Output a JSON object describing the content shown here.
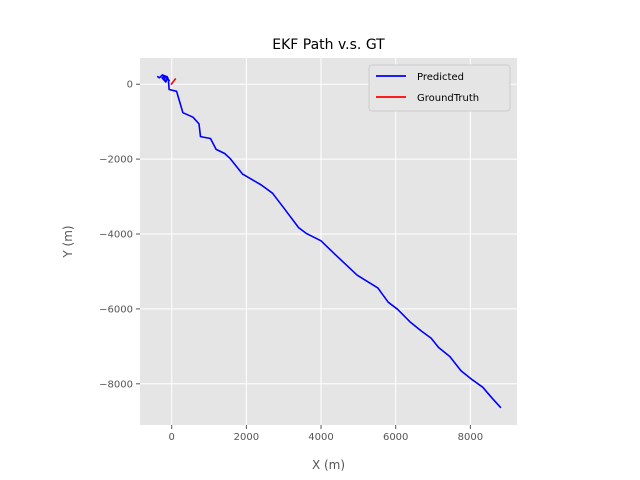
{
  "chart_data": {
    "type": "line",
    "title": "EKF Path v.s. GT",
    "xlabel": "X (m)",
    "ylabel": "Y (m)",
    "xlim": [
      -850,
      9250
    ],
    "ylim": [
      -9100,
      700
    ],
    "xticks": [
      0,
      2000,
      4000,
      6000,
      8000
    ],
    "yticks": [
      0,
      -2000,
      -4000,
      -6000,
      -8000
    ],
    "grid": true,
    "legend_position": "top-right",
    "series": [
      {
        "name": "Predicted",
        "color": "#0000ff",
        "x": [
          -390,
          -330,
          -250,
          -180,
          -260,
          -160,
          -120,
          -70,
          -230,
          -120,
          -90,
          -70,
          130,
          160,
          300,
          570,
          730,
          770,
          1040,
          1190,
          1420,
          1560,
          1900,
          2400,
          2700,
          3000,
          3400,
          3600,
          4000,
          4340,
          4700,
          4970,
          5520,
          5800,
          6050,
          6400,
          6700,
          6950,
          7150,
          7450,
          7750,
          8050,
          8330,
          8600,
          8820
        ],
        "y": [
          210,
          170,
          250,
          120,
          170,
          60,
          150,
          100,
          240,
          200,
          120,
          -140,
          -190,
          -290,
          -760,
          -880,
          -1060,
          -1400,
          -1450,
          -1740,
          -1850,
          -1980,
          -2400,
          -2690,
          -2910,
          -3300,
          -3830,
          -3980,
          -4180,
          -4510,
          -4850,
          -5100,
          -5440,
          -5820,
          -6010,
          -6360,
          -6600,
          -6780,
          -7030,
          -7270,
          -7650,
          -7890,
          -8090,
          -8400,
          -8640
        ]
      },
      {
        "name": "GroundTruth",
        "color": "#ff0000",
        "x": [
          -20,
          10,
          50,
          80,
          110
        ],
        "y": [
          -10,
          30,
          80,
          120,
          150
        ]
      }
    ]
  }
}
